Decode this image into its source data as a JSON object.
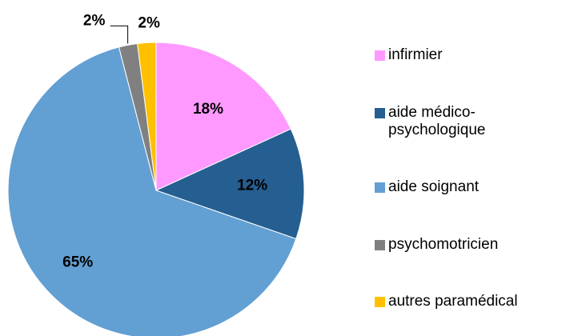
{
  "chart_data": {
    "type": "pie",
    "categories": [
      "infirmier",
      "aide médico-psychologique",
      "aide soignant",
      "psychomotricien",
      "autres paramédical"
    ],
    "values": [
      18,
      12,
      65,
      2,
      2
    ],
    "value_labels": [
      "18%",
      "12%",
      "65%",
      "2%",
      "2%"
    ],
    "colors": [
      "#ff99ff",
      "#255e91",
      "#629fd3",
      "#808080",
      "#ffc000"
    ],
    "legend": "right"
  }
}
